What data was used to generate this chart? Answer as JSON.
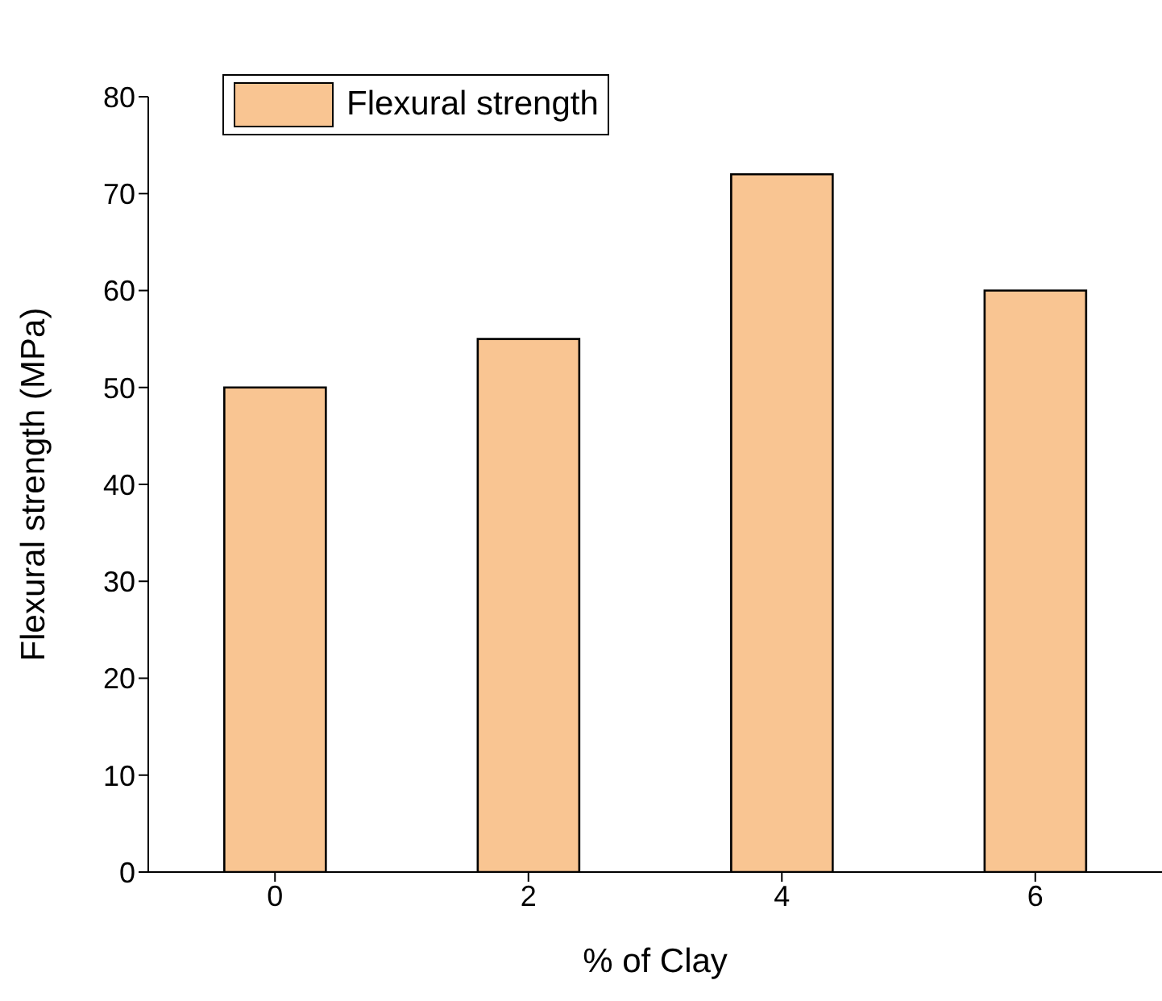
{
  "chart_data": {
    "type": "bar",
    "xlabel": "% of Clay",
    "ylabel": "Flexural strength (MPa)",
    "categories": [
      "0",
      "2",
      "4",
      "6"
    ],
    "series": [
      {
        "name": "Flexural strength",
        "color": "#f9c592",
        "values": [
          50,
          55,
          72,
          60
        ]
      }
    ],
    "ylim": [
      0,
      80
    ],
    "yticks": [
      0,
      10,
      20,
      30,
      40,
      50,
      60,
      70,
      80
    ],
    "grid": false,
    "legend": "top left"
  }
}
